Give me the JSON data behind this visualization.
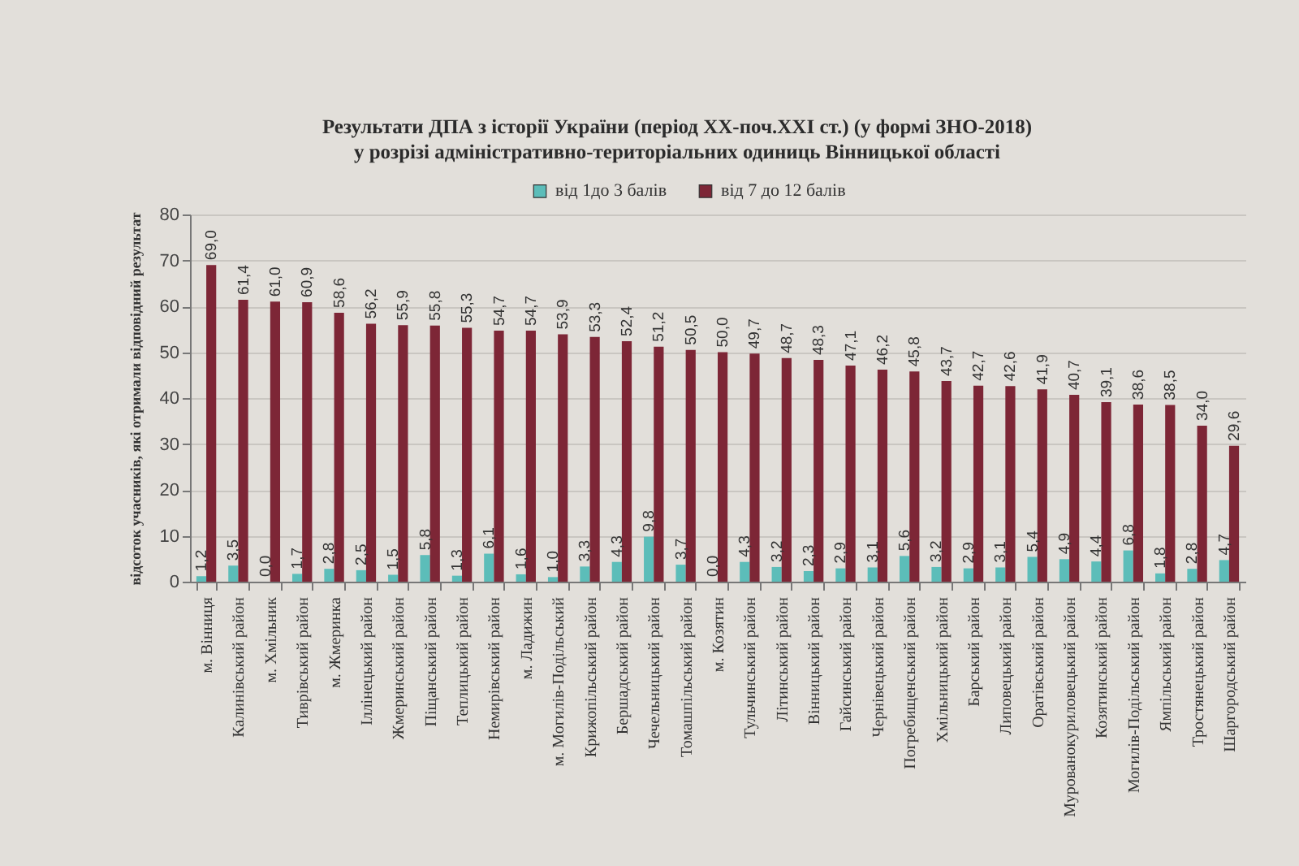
{
  "chart_data": {
    "type": "bar",
    "title": "Результати ДПА з історії України (період XX-поч.XXI ст.) (у формі ЗНО-2018)",
    "subtitle": "у розрізі адміністративно-територіальних одиниць Вінницької області",
    "ylabel": "відсоток учасників, які отримали відповідний результат",
    "categories": [
      "м. Вінниця",
      "Калинівський район",
      "м. Хмільник",
      "Тиврівський район",
      "м. Жмеринка",
      "Іллінецький район",
      "Жмеринський район",
      "Піщанський район",
      "Теплицький район",
      "Немирівський район",
      "м. Ладижин",
      "м. Могилів-Подільський",
      "Крижопільський район",
      "Бершадський район",
      "Чечельницький район",
      "Томашпільський район",
      "м. Козятин",
      "Тульчинський район",
      "Літинський район",
      "Вінницький район",
      "Гайсинський район",
      "Чернівецький район",
      "Погребищенський район",
      "Хмільницький район",
      "Барський район",
      "Липовецький район",
      "Оратівський район",
      "Мурованокуриловецький район",
      "Козятинський район",
      "Могилів-Подільський район",
      "Ямпільський район",
      "Тростянецький район",
      "Шаргородський район"
    ],
    "series": [
      {
        "name": "від 1до 3 балів",
        "color": "#5cbdb9",
        "values": [
          1.2,
          3.5,
          0.0,
          1.7,
          2.8,
          2.5,
          1.5,
          5.8,
          1.3,
          6.1,
          1.6,
          1.0,
          3.3,
          4.3,
          9.8,
          3.7,
          0.0,
          4.3,
          3.2,
          2.3,
          2.9,
          3.1,
          5.6,
          3.2,
          2.9,
          3.1,
          5.4,
          4.9,
          4.4,
          6.8,
          1.8,
          2.8,
          4.7
        ],
        "value_labels": [
          "1,2",
          "3,5",
          "0,0",
          "1,7",
          "2,8",
          "2,5",
          "1,5",
          "5,8",
          "1,3",
          "6,1",
          "1,6",
          "1,0",
          "3,3",
          "4,3",
          "9,8",
          "3,7",
          "0,0",
          "4,3",
          "3,2",
          "2,3",
          "2,9",
          "3,1",
          "5,6",
          "3,2",
          "2,9",
          "3,1",
          "5,4",
          "4,9",
          "4,4",
          "6,8",
          "1,8",
          "2,8",
          "4,7"
        ]
      },
      {
        "name": "від 7 до 12 балів",
        "color": "#7d2636",
        "values": [
          69.0,
          61.4,
          61.0,
          60.9,
          58.6,
          56.2,
          55.9,
          55.8,
          55.3,
          54.7,
          54.7,
          53.9,
          53.3,
          52.4,
          51.2,
          50.5,
          50.0,
          49.7,
          48.7,
          48.3,
          47.1,
          46.2,
          45.8,
          43.7,
          42.7,
          42.6,
          41.9,
          40.7,
          39.1,
          38.6,
          38.5,
          34.0,
          29.6
        ],
        "value_labels": [
          "69,0",
          "61,4",
          "61,0",
          "60,9",
          "58,6",
          "56,2",
          "55,9",
          "55,8",
          "55,3",
          "54,7",
          "54,7",
          "53,9",
          "53,3",
          "52,4",
          "51,2",
          "50,5",
          "50,0",
          "49,7",
          "48,7",
          "48,3",
          "47,1",
          "46,2",
          "45,8",
          "43,7",
          "42,7",
          "42,6",
          "41,9",
          "40,7",
          "39,1",
          "38,6",
          "38,5",
          "34,0",
          "29,6"
        ]
      }
    ],
    "ylim": [
      0,
      80
    ],
    "yticks": [
      0,
      10,
      20,
      30,
      40,
      50,
      60,
      70,
      80
    ],
    "grid": "y",
    "legend": "top"
  }
}
